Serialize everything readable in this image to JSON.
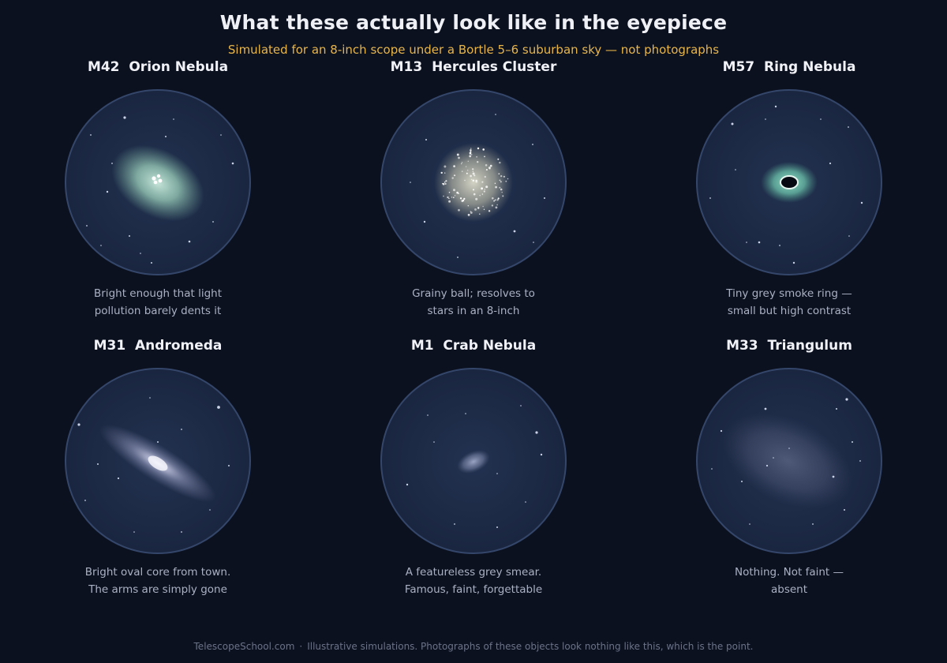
{
  "title": "What these actually look like in the eyepiece",
  "subtitle": "Simulated for an 8-inch scope under a Bortle 5–6 suburban sky — not photographs",
  "objects": [
    {
      "id": "m42",
      "catalog": "M42",
      "name": "Orion Nebula",
      "caption_line1": "Bright enough that light",
      "caption_line2": "pollution barely dents it",
      "color": "#a8d8c4"
    },
    {
      "id": "m13",
      "catalog": "M13",
      "name": "Hercules Cluster",
      "caption_line1": "Grainy ball; resolves to",
      "caption_line2": "stars in an 8-inch",
      "color": "#e4e2cc"
    },
    {
      "id": "m57",
      "catalog": "M57",
      "name": "Ring Nebula",
      "caption_line1": "Tiny grey smoke ring —",
      "caption_line2": "small but high contrast",
      "color": "#7fd6bf"
    },
    {
      "id": "m31",
      "catalog": "M31",
      "name": "Andromeda",
      "caption_line1": "Bright oval core from town.",
      "caption_line2": "The arms are simply gone",
      "color": "#c8cce4"
    },
    {
      "id": "m1",
      "catalog": "M1",
      "name": "Crab Nebula",
      "caption_line1": "A featureless grey smear.",
      "caption_line2": "Famous, faint, forgettable",
      "color": "#9aa3c4"
    },
    {
      "id": "m33",
      "catalog": "M33",
      "name": "Triangulum",
      "caption_line1": "Nothing. Not faint —",
      "caption_line2": "absent",
      "color": "#8e96b4"
    }
  ],
  "footer": {
    "site": "TelescopeSchool.com",
    "separator": "·",
    "note": "Illustrative simulations. Photographs of these objects look nothing like this, which is the point."
  }
}
